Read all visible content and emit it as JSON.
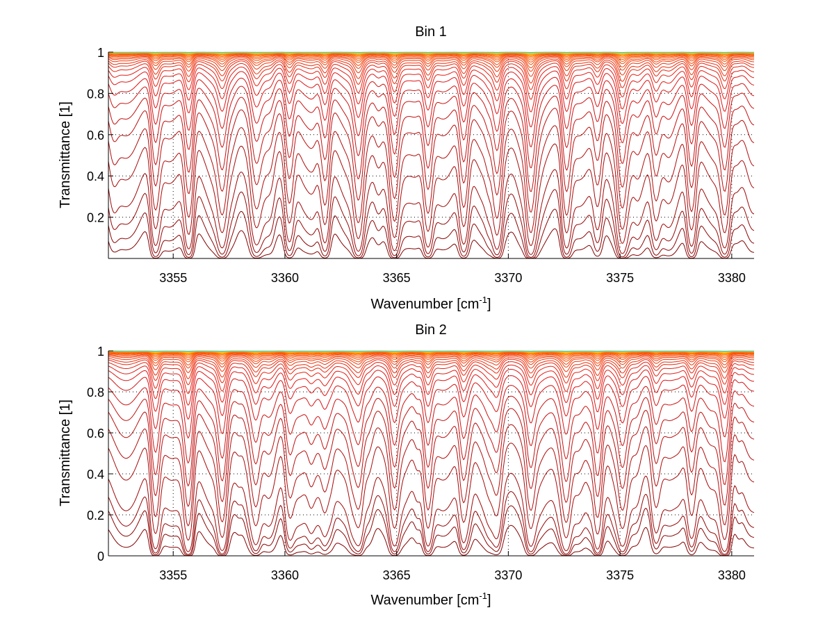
{
  "chart_data": [
    {
      "type": "line",
      "title": "Bin 1",
      "xlabel": "Wavenumber [cm",
      "xlabel_sup": "-1",
      "xlabel_end": "]",
      "ylabel": "Transmittance [1]",
      "xlim": [
        3352.1,
        3381
      ],
      "ylim": [
        0,
        1
      ],
      "xticks": [
        3355,
        3360,
        3365,
        3370,
        3375,
        3380
      ],
      "xtick_labels": [
        "3355",
        "3360",
        "3365",
        "3370",
        "3375",
        "3380"
      ],
      "yticks": [
        0.2,
        0.4,
        0.6,
        0.8,
        1
      ],
      "ytick_labels": [
        "0.2",
        "0.4",
        "0.6",
        "0.8",
        "1"
      ],
      "grid": true,
      "n_series": 30,
      "baseline_levels": [
        0.005,
        0.02,
        0.05,
        0.1,
        0.2,
        0.3,
        0.42,
        0.52,
        0.62,
        0.7,
        0.77,
        0.82,
        0.86,
        0.89,
        0.91,
        0.93,
        0.945,
        0.955,
        0.965,
        0.972,
        0.978,
        0.983,
        0.987,
        0.99,
        0.992,
        0.994,
        0.996,
        0.997,
        0.998,
        0.999
      ],
      "absorption_lines": [
        3354.2,
        3355.7,
        3357.2,
        3358.7,
        3360.2,
        3361.8,
        3363.3,
        3364.9,
        3366.4,
        3368.0,
        3369.5,
        3371.0,
        3372.6,
        3374.0,
        3375.1,
        3376.6,
        3378.2,
        3379.7
      ]
    },
    {
      "type": "line",
      "title": "Bin 2",
      "xlabel": "Wavenumber [cm",
      "xlabel_sup": "-1",
      "xlabel_end": "]",
      "ylabel": "Transmittance [1]",
      "xlim": [
        3352.1,
        3381
      ],
      "ylim": [
        0,
        1
      ],
      "xticks": [
        3355,
        3360,
        3365,
        3370,
        3375,
        3380
      ],
      "xtick_labels": [
        "3355",
        "3360",
        "3365",
        "3370",
        "3375",
        "3380"
      ],
      "yticks": [
        0,
        0.2,
        0.4,
        0.6,
        0.8,
        1
      ],
      "ytick_labels": [
        "0",
        "0.2",
        "0.4",
        "0.6",
        "0.8",
        "1"
      ],
      "grid": true,
      "n_series": 30,
      "baseline_levels": [
        0.005,
        0.02,
        0.04,
        0.08,
        0.19,
        0.29,
        0.4,
        0.5,
        0.6,
        0.7,
        0.77,
        0.82,
        0.86,
        0.89,
        0.91,
        0.93,
        0.945,
        0.955,
        0.965,
        0.972,
        0.978,
        0.983,
        0.987,
        0.99,
        0.992,
        0.994,
        0.996,
        0.997,
        0.998,
        0.999
      ],
      "absorption_lines": [
        3354.2,
        3355.7,
        3357.2,
        3358.7,
        3360.2,
        3361.8,
        3363.3,
        3364.9,
        3366.4,
        3368.0,
        3369.5,
        3371.0,
        3372.6,
        3374.0,
        3375.1,
        3376.6,
        3378.2,
        3379.7
      ]
    }
  ]
}
